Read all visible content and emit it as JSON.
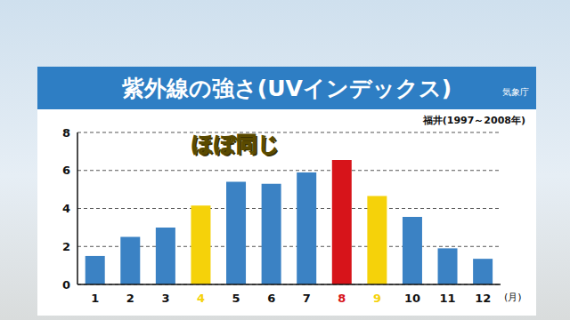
{
  "chart_data": {
    "type": "bar",
    "title": "紫外線の強さ(UVインデックス)",
    "source": "気象庁",
    "subtitle": "福井(1997～2008年)",
    "annotation": "ほぼ同じ",
    "x_label": "(月)",
    "categories": [
      "1",
      "2",
      "3",
      "4",
      "5",
      "6",
      "7",
      "8",
      "9",
      "10",
      "11",
      "12"
    ],
    "values": [
      1.5,
      2.5,
      3.0,
      4.15,
      5.4,
      5.3,
      5.9,
      6.55,
      4.65,
      3.55,
      1.9,
      1.35
    ],
    "colors": [
      "#3b82c4",
      "#3b82c4",
      "#3b82c4",
      "#f5d20a",
      "#3b82c4",
      "#3b82c4",
      "#3b82c4",
      "#d7141a",
      "#f5d20a",
      "#3b82c4",
      "#3b82c4",
      "#3b82c4"
    ],
    "ylim": [
      0,
      8
    ],
    "yticks": [
      0,
      2,
      4,
      6,
      8
    ],
    "grid": true
  }
}
